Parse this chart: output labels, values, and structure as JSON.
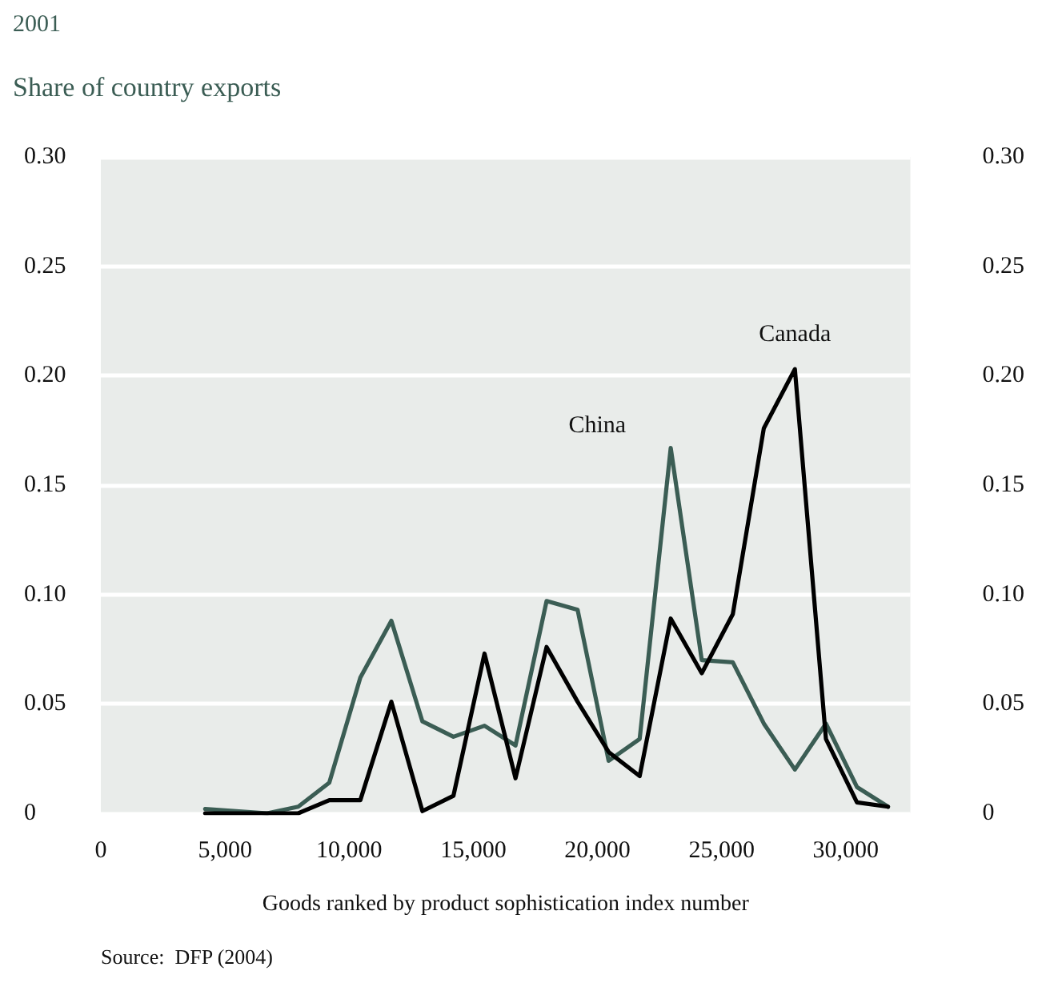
{
  "chart_data": {
    "type": "line",
    "subtitle": "2001",
    "ylabel": "Share of country exports",
    "xlabel": "Goods ranked by product sophistication index number",
    "annotations": [
      "Source:  DFP (2004)"
    ],
    "x": [
      4200,
      5450,
      6700,
      7950,
      9200,
      10450,
      11700,
      12950,
      14200,
      15450,
      16700,
      17950,
      19200,
      20450,
      21700,
      22950,
      24200,
      25450,
      26700,
      27950,
      29200,
      30450,
      31700
    ],
    "series": [
      {
        "name": "China",
        "color": "#3b5d54",
        "values": [
          0.002,
          0.001,
          0,
          0.003,
          0.014,
          0.062,
          0.088,
          0.042,
          0.035,
          0.04,
          0.031,
          0.097,
          0.093,
          0.024,
          0.034,
          0.167,
          0.07,
          0.069,
          0.041,
          0.02,
          0.041,
          0.012,
          0.003
        ]
      },
      {
        "name": "Canada",
        "color": "#000000",
        "values": [
          0,
          0,
          0,
          0,
          0.006,
          0.006,
          0.051,
          0.001,
          0.008,
          0.073,
          0.016,
          0.076,
          0.051,
          0.028,
          0.017,
          0.089,
          0.064,
          0.091,
          0.176,
          0.203,
          0.034,
          0.005,
          0.003
        ]
      }
    ],
    "xlim": [
      0,
      32600
    ],
    "xticks": [
      0,
      {
        "value": 5000,
        "label": "5,000"
      },
      {
        "value": 10000,
        "label": "10,000"
      },
      {
        "value": 15000,
        "label": "15,000"
      },
      {
        "value": 20000,
        "label": "20,000"
      },
      {
        "value": 25000,
        "label": "25,000"
      },
      {
        "value": 30000,
        "label": "30,000"
      }
    ],
    "ylim": [
      0,
      0.3
    ],
    "yticks": [
      0,
      0.05,
      {
        "value": 0.1,
        "label": "0.10"
      },
      0.15,
      {
        "value": 0.2,
        "label": "0.20"
      },
      0.25,
      {
        "value": 0.3,
        "label": "0.30"
      }
    ],
    "y2lim": [
      0,
      0.3
    ],
    "y2ticks": [
      0,
      0.05,
      {
        "value": 0.1,
        "label": "0.10"
      },
      0.15,
      {
        "value": 0.2,
        "label": "0.20"
      },
      0.25,
      {
        "value": 0.3,
        "label": "0.30"
      }
    ],
    "grid": "y",
    "legend": false,
    "marker": "none",
    "line_style": "solid"
  }
}
